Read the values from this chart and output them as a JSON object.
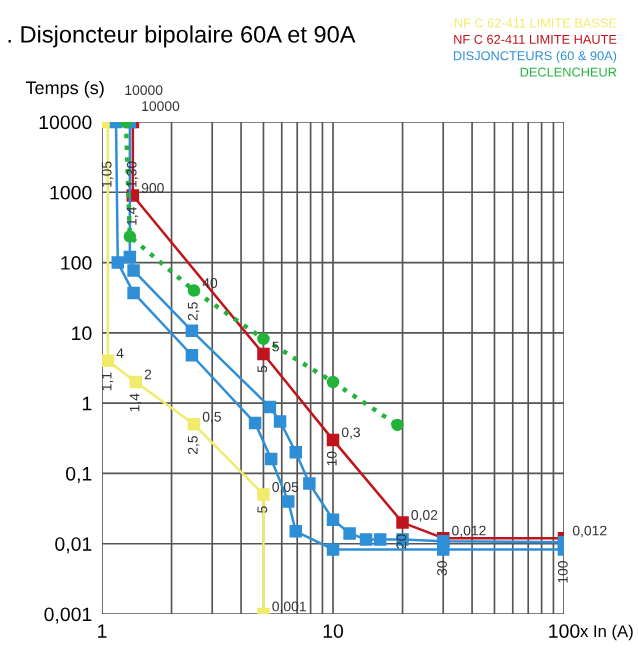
{
  "chart_data": {
    "type": "line",
    "title": ". Disjoncteur bipolaire 60A et 90A",
    "xlabel": "x In (A)",
    "ylabel": "Temps (s)",
    "log": "xy",
    "xlim": [
      1,
      100
    ],
    "ylim": [
      0.001,
      10000
    ],
    "xticks": [
      1,
      {
        "value": 2,
        "label": null
      },
      {
        "value": 3,
        "label": null
      },
      {
        "value": 4,
        "label": null
      },
      {
        "value": 5,
        "label": null
      },
      {
        "value": 6,
        "label": null
      },
      {
        "value": 7,
        "label": null
      },
      {
        "value": 8,
        "label": null
      },
      {
        "value": 9,
        "label": null
      },
      10,
      {
        "value": 20,
        "label": null
      },
      {
        "value": 30,
        "label": null
      },
      {
        "value": 40,
        "label": null
      },
      {
        "value": 50,
        "label": null
      },
      {
        "value": 60,
        "label": null
      },
      {
        "value": 70,
        "label": null
      },
      {
        "value": 80,
        "label": null
      },
      {
        "value": 90,
        "label": null
      },
      100
    ],
    "yticks": [
      {
        "value": 0.001,
        "label": "0,001"
      },
      {
        "value": 0.01,
        "label": "0,01"
      },
      {
        "value": 0.1,
        "label": "0,1"
      },
      1,
      10,
      100,
      1000,
      10000
    ],
    "grid": true,
    "legend": "top right",
    "marker": "square",
    "series": [
      {
        "name": "NF C 62-411 LIMITE BASSE",
        "color": "#f2ea6a",
        "x": [
          1.06,
          1.06,
          1.4,
          2.5,
          5,
          5
        ],
        "values": [
          10000,
          4,
          2,
          0.5,
          0.05,
          0.001
        ],
        "value_labels": [
          null,
          "4",
          "2",
          "0,5",
          "0,05",
          "0,001"
        ]
      },
      {
        "name": "NF C 62-411 LIMITE HAUTE",
        "color": "#c0141c",
        "x": [
          1.36,
          1.36,
          5,
          10,
          20,
          30,
          100
        ],
        "values": [
          10000,
          900,
          5,
          0.3,
          0.02,
          0.012,
          0.012
        ],
        "value_labels": [
          "10000",
          "900",
          "5",
          "0,3",
          "0,02",
          "0,012",
          "0,012"
        ]
      },
      {
        "name": "DISJONCTEURS (60 & 90A)",
        "color": "#2e8fd6",
        "x": [
          1.15,
          1.17,
          1.37,
          2.45,
          4.6,
          5.4,
          6.4,
          6.9,
          10,
          30,
          100
        ],
        "values": [
          10000,
          100,
          37,
          4.8,
          0.52,
          0.16,
          0.04,
          0.015,
          0.0083,
          0.0083,
          0.0083
        ],
        "value_labels": [
          "10000",
          null,
          null,
          null,
          null,
          null,
          null,
          null,
          null,
          null,
          null
        ]
      },
      {
        "color": "#2e8fd6",
        "x": [
          1.32,
          1.32,
          1.37,
          2.45,
          5.33,
          5.9,
          6.9,
          7.9,
          10,
          11.8,
          13.9,
          16,
          20,
          30,
          100
        ],
        "values": [
          10000,
          120,
          77,
          10.7,
          0.88,
          0.55,
          0.2,
          0.072,
          0.022,
          0.014,
          0.0115,
          0.0115,
          0.0115,
          0.0108,
          0.0105
        ]
      },
      {
        "name": "DECLENCHEUR",
        "color": "#22b43a",
        "line_style": "dotted",
        "marker": "circle",
        "x": [
          1.27,
          1.32,
          2.5,
          5,
          10,
          19
        ],
        "values": [
          10000,
          235,
          40,
          8.2,
          2,
          0.49
        ],
        "value_labels": [
          null,
          null,
          "40",
          null,
          null,
          null
        ]
      }
    ],
    "annotations": [
      {
        "text": "1,05",
        "x": 1.06,
        "y": 10000
      },
      {
        "text": "1,30",
        "x": 1.36,
        "y": 10000
      },
      {
        "text": "1,4",
        "x": 1.36,
        "y": 900
      },
      {
        "text": "2,5",
        "x": 2.5,
        "y": 40
      },
      {
        "text": "5",
        "x": 5,
        "y": 5
      },
      {
        "text": "1,1",
        "x": 1.06,
        "y": 4
      },
      {
        "text": "1,4",
        "x": 1.4,
        "y": 2
      },
      {
        "text": "2,5",
        "x": 2.5,
        "y": 0.5
      },
      {
        "text": "5",
        "x": 5,
        "y": 0.05
      },
      {
        "text": "10",
        "x": 10,
        "y": 0.3
      },
      {
        "text": "20",
        "x": 20,
        "y": 0.02
      },
      {
        "text": "30",
        "x": 30,
        "y": 0.0083
      },
      {
        "text": "100",
        "x": 100,
        "y": 0.0083
      }
    ]
  }
}
